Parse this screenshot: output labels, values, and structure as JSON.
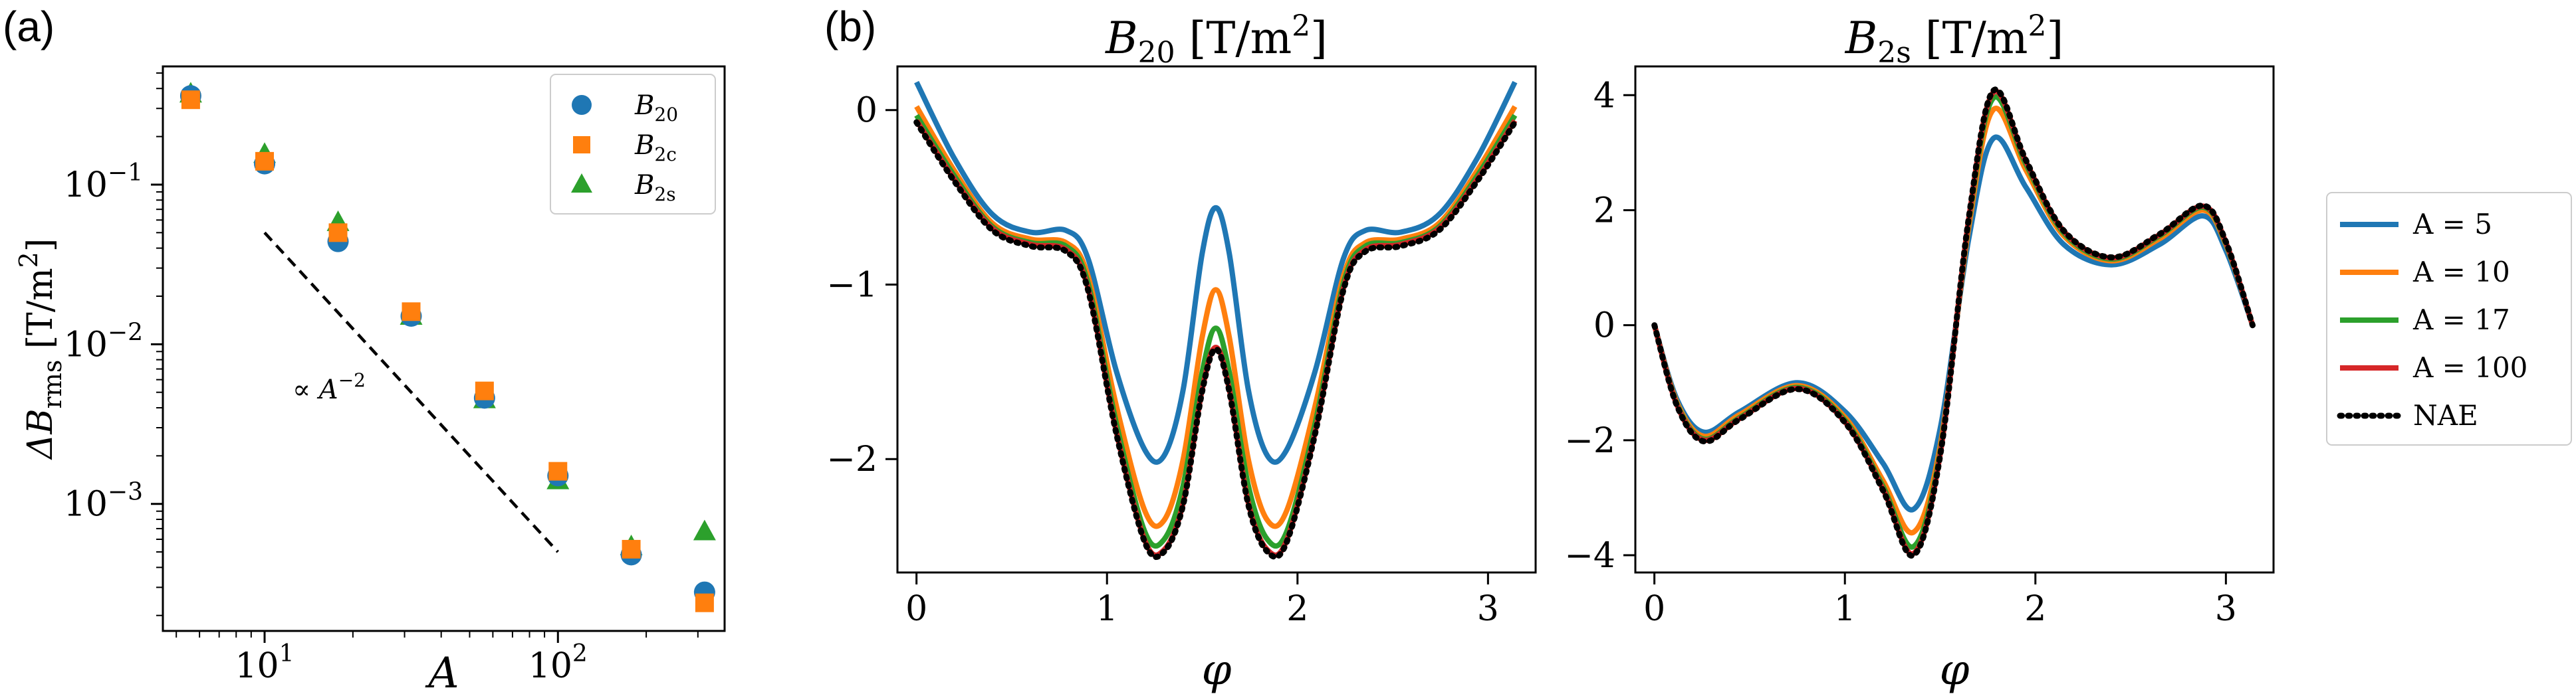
{
  "figure": {
    "panel_a_label": "(a)",
    "panel_b_label": "(b)",
    "colors": {
      "blue": "#1f77b4",
      "orange": "#ff7f0e",
      "green": "#2ca02c",
      "red": "#d62728",
      "black": "#000000"
    }
  },
  "chart_data": [
    {
      "type": "scatter",
      "panel": "(a)",
      "x_scale": "log",
      "y_scale": "log",
      "xlabel": "A",
      "ylabel": "ΔB_rms [T/m²]",
      "ylabel_parts": {
        "delta_b": "ΔB",
        "sub": "rms",
        "unit": "[T/m",
        "sup": "2",
        "close": "]"
      },
      "xlim": [
        4.5,
        370
      ],
      "ylim": [
        0.00016,
        0.55
      ],
      "x_ticks": [
        {
          "value": 10,
          "base": "10",
          "exp": "1"
        },
        {
          "value": 100,
          "base": "10",
          "exp": "2"
        }
      ],
      "y_ticks": [
        {
          "value": 0.001,
          "base": "10",
          "exp": "−3"
        },
        {
          "value": 0.01,
          "base": "10",
          "exp": "−2"
        },
        {
          "value": 0.1,
          "base": "10",
          "exp": "−1"
        }
      ],
      "legend_position": "top-right",
      "series": [
        {
          "name": "B20",
          "label_base": "B",
          "label_sub": "20",
          "marker": "circle",
          "color": "#1f77b4",
          "x": [
            5.6,
            10,
            17.8,
            31.6,
            56.2,
            100,
            177.8,
            316.2
          ],
          "y": [
            0.36,
            0.135,
            0.044,
            0.015,
            0.0046,
            0.0015,
            0.00048,
            0.00028
          ]
        },
        {
          "name": "B2c",
          "label_base": "B",
          "label_sub": "2c",
          "marker": "square",
          "color": "#ff7f0e",
          "x": [
            5.6,
            10,
            17.8,
            31.6,
            56.2,
            100,
            177.8,
            316.2
          ],
          "y": [
            0.34,
            0.14,
            0.05,
            0.016,
            0.0051,
            0.0016,
            0.00052,
            0.00024
          ]
        },
        {
          "name": "B2s",
          "label_base": "B",
          "label_sub": "2s",
          "marker": "triangle",
          "color": "#2ca02c",
          "x": [
            5.6,
            10,
            17.8,
            31.6,
            56.2,
            100,
            177.8,
            316.2
          ],
          "y": [
            0.37,
            0.155,
            0.058,
            0.015,
            0.0045,
            0.0014,
            0.00054,
            0.00067
          ]
        }
      ],
      "reference_line": {
        "x": [
          10,
          100
        ],
        "y": [
          0.05,
          0.0005
        ],
        "style": "dashed",
        "label": "∝ A",
        "label_sup": "−2"
      }
    },
    {
      "type": "line",
      "panel": "(b) left",
      "title_base": "B",
      "title_sub": "20",
      "title_unit": "[T/m",
      "title_sup": "2",
      "title_close": "]",
      "xlabel": "φ",
      "xlim": [
        -0.1,
        3.25
      ],
      "ylim": [
        -2.65,
        0.25
      ],
      "x_ticks": [
        "0",
        "1",
        "2",
        "3"
      ],
      "y_ticks": [
        {
          "value": 0,
          "label": "0"
        },
        {
          "value": -1,
          "label": "−1"
        },
        {
          "value": -2,
          "label": "−2"
        }
      ],
      "x_key": [
        0.0,
        0.2,
        0.4,
        0.6,
        0.785,
        0.9,
        1.05,
        1.2,
        1.3,
        1.4,
        1.5,
        1.571
      ],
      "series": [
        {
          "name": "A = 5",
          "color": "#1f77b4",
          "style": "solid",
          "y": [
            0.16,
            -0.28,
            -0.6,
            -0.7,
            -0.69,
            -0.85,
            -1.5,
            -1.95,
            -1.98,
            -1.6,
            -0.82,
            -0.56
          ]
        },
        {
          "name": "A = 10",
          "color": "#ff7f0e",
          "style": "solid",
          "y": [
            0.02,
            -0.35,
            -0.65,
            -0.74,
            -0.76,
            -0.95,
            -1.7,
            -2.3,
            -2.35,
            -2.0,
            -1.3,
            -1.03
          ]
        },
        {
          "name": "A = 17",
          "color": "#2ca02c",
          "style": "solid",
          "y": [
            -0.03,
            -0.38,
            -0.67,
            -0.76,
            -0.78,
            -0.99,
            -1.8,
            -2.42,
            -2.46,
            -2.15,
            -1.5,
            -1.25
          ]
        },
        {
          "name": "A = 100",
          "color": "#d62728",
          "style": "solid",
          "y": [
            -0.06,
            -0.4,
            -0.68,
            -0.77,
            -0.8,
            -1.02,
            -1.85,
            -2.47,
            -2.52,
            -2.25,
            -1.6,
            -1.36
          ]
        },
        {
          "name": "NAE",
          "color": "#000000",
          "style": "dotted",
          "y": [
            -0.07,
            -0.41,
            -0.69,
            -0.78,
            -0.81,
            -1.03,
            -1.86,
            -2.48,
            -2.53,
            -2.26,
            -1.61,
            -1.37
          ]
        }
      ]
    },
    {
      "type": "line",
      "panel": "(b) right",
      "title_base": "B",
      "title_sub": "2s",
      "title_unit": "[T/m",
      "title_sup": "2",
      "title_close": "]",
      "xlabel": "φ",
      "xlim": [
        -0.1,
        3.25
      ],
      "ylim": [
        -4.3,
        4.5
      ],
      "x_ticks": [
        "0",
        "1",
        "2",
        "3"
      ],
      "y_ticks": [
        {
          "value": -4,
          "label": "−4"
        },
        {
          "value": -2,
          "label": "−2"
        },
        {
          "value": 0,
          "label": "0"
        },
        {
          "value": 2,
          "label": "2"
        },
        {
          "value": 4,
          "label": "4"
        }
      ],
      "x_key": [
        0.0,
        0.12,
        0.26,
        0.45,
        0.75,
        1.0,
        1.2,
        1.36,
        1.5,
        1.65,
        1.78,
        1.95,
        2.15,
        2.4,
        2.65,
        2.88,
        3.0,
        3.14
      ],
      "series": [
        {
          "name": "A = 5",
          "color": "#1f77b4",
          "style": "solid",
          "y": [
            0,
            -1.3,
            -1.86,
            -1.5,
            -1.0,
            -1.5,
            -2.4,
            -3.2,
            -1.8,
            1.5,
            3.25,
            2.4,
            1.4,
            1.05,
            1.4,
            1.9,
            1.3,
            0
          ]
        },
        {
          "name": "A = 10",
          "color": "#ff7f0e",
          "style": "solid",
          "y": [
            0,
            -1.35,
            -1.93,
            -1.55,
            -1.05,
            -1.6,
            -2.7,
            -3.6,
            -2.1,
            1.7,
            3.75,
            2.7,
            1.55,
            1.12,
            1.5,
            2.0,
            1.4,
            0
          ]
        },
        {
          "name": "A = 17",
          "color": "#2ca02c",
          "style": "solid",
          "y": [
            0,
            -1.38,
            -1.98,
            -1.6,
            -1.08,
            -1.65,
            -2.8,
            -3.85,
            -2.2,
            1.8,
            3.95,
            2.8,
            1.6,
            1.15,
            1.55,
            2.05,
            1.42,
            0
          ]
        },
        {
          "name": "A = 100",
          "color": "#d62728",
          "style": "solid",
          "y": [
            0,
            -1.4,
            -2.0,
            -1.62,
            -1.1,
            -1.68,
            -2.85,
            -3.97,
            -2.25,
            1.85,
            4.05,
            2.85,
            1.63,
            1.17,
            1.57,
            2.07,
            1.44,
            0
          ]
        },
        {
          "name": "NAE",
          "color": "#000000",
          "style": "dotted",
          "y": [
            0,
            -1.41,
            -2.02,
            -1.63,
            -1.11,
            -1.69,
            -2.87,
            -4.0,
            -2.27,
            1.86,
            4.08,
            2.87,
            1.64,
            1.18,
            1.58,
            2.08,
            1.45,
            0
          ]
        }
      ],
      "legend_position": "outside-right"
    }
  ]
}
